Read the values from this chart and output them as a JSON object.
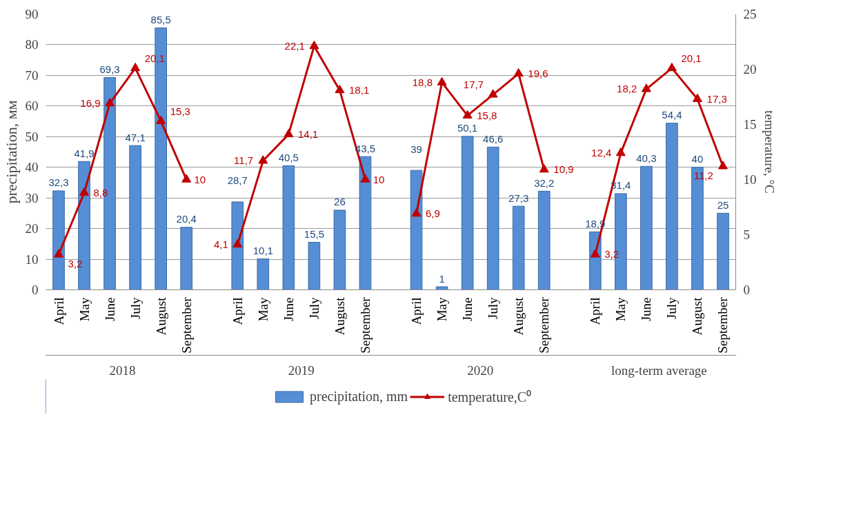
{
  "chart_data": {
    "type": "bar",
    "categories": [
      "April",
      "May",
      "June",
      "July",
      "August",
      "September",
      null,
      "April",
      "May",
      "June",
      "July",
      "August",
      "September",
      null,
      "April",
      "May",
      "June",
      "July",
      "August",
      "September",
      null,
      "April",
      "May",
      "June",
      "July",
      "August",
      "September"
    ],
    "series": [
      {
        "name": "precipitation, mm",
        "color": "#558ed5",
        "values": [
          32.3,
          41.9,
          69.3,
          47.1,
          85.5,
          20.4,
          null,
          28.7,
          10.1,
          40.5,
          15.5,
          26,
          43.5,
          null,
          39,
          1,
          50.1,
          46.6,
          27.3,
          32.2,
          null,
          18.9,
          31.4,
          40.3,
          54.4,
          40,
          25
        ],
        "value_labels": [
          "32,3",
          "41,9",
          "69,3",
          "47,1",
          "85,5",
          "20,4",
          null,
          "28,7",
          "10,1",
          "40,5",
          "15,5",
          "26",
          "43,5",
          null,
          "39",
          "1",
          "50,1",
          "46,6",
          "27,3",
          "32,2",
          null,
          "18,9",
          "31,4",
          "40,3",
          "54,4",
          "40",
          "25"
        ]
      },
      {
        "name": "temperature,C⁰",
        "type": "line",
        "axis": "y2",
        "color": "#c00000",
        "values": [
          3.2,
          8.8,
          16.9,
          20.1,
          15.3,
          10,
          null,
          4.1,
          11.7,
          14.1,
          22.1,
          18.1,
          10,
          null,
          6.9,
          18.8,
          15.8,
          17.7,
          19.6,
          10.9,
          null,
          3.2,
          12.4,
          18.2,
          20.1,
          17.3,
          11.2
        ],
        "value_labels": [
          "3,2",
          "8,8",
          "16,9",
          "20,1",
          "15,3",
          "10",
          null,
          "4,1",
          "11,7",
          "14,1",
          "22,1",
          "18,1",
          "10",
          null,
          "6,9",
          "18,8",
          "15,8",
          "17,7",
          "19,6",
          "10,9",
          null,
          "3,2",
          "12,4",
          "18,2",
          "20,1",
          "17,3",
          "11,2"
        ]
      }
    ],
    "annotations": [
      "2018",
      "2019",
      "2020",
      "long-term average"
    ],
    "ylabel": "precipitation, мм",
    "y2label": "temperature, °C",
    "ylim": [
      0,
      90
    ],
    "yticks": [
      0,
      10,
      20,
      30,
      40,
      50,
      60,
      70,
      80,
      90
    ],
    "y2lim": [
      0,
      25
    ],
    "y2ticks": [
      0,
      5,
      10,
      15,
      20,
      25
    ],
    "grid": "y",
    "legend": "bottom",
    "marker": "triangle",
    "line_style": "solid"
  }
}
